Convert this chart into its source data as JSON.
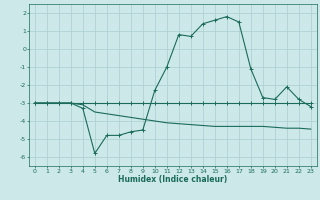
{
  "xlabel": "Humidex (Indice chaleur)",
  "x": [
    0,
    1,
    2,
    3,
    4,
    5,
    6,
    7,
    8,
    9,
    10,
    11,
    12,
    13,
    14,
    15,
    16,
    17,
    18,
    19,
    20,
    21,
    22,
    23
  ],
  "line_main": [
    -3,
    -3,
    -3,
    -3,
    -3.3,
    -5.8,
    -4.8,
    -4.8,
    -4.6,
    -4.5,
    -2.3,
    -1.0,
    0.8,
    0.7,
    1.4,
    1.6,
    1.8,
    1.5,
    -1.1,
    -2.7,
    -2.8,
    -2.1,
    -2.8,
    -3.2
  ],
  "line_upper": [
    -3,
    -3,
    -3,
    -3,
    -3.0,
    -3.0,
    -3.0,
    -3.0,
    -3.0,
    -3.0,
    -3.0,
    -3.0,
    -3.0,
    -3.0,
    -3.0,
    -3.0,
    -3.0,
    -3.0,
    -3.0,
    -3.0,
    -3.0,
    -3.0,
    -3.0,
    -3.0
  ],
  "line_lower": [
    -3,
    -3,
    -3,
    -3,
    -3.1,
    -3.5,
    -3.6,
    -3.7,
    -3.8,
    -3.9,
    -4.0,
    -4.1,
    -4.15,
    -4.2,
    -4.25,
    -4.3,
    -4.3,
    -4.3,
    -4.3,
    -4.3,
    -4.35,
    -4.4,
    -4.4,
    -4.45
  ],
  "ylim": [
    -6.5,
    2.5
  ],
  "yticks": [
    -6,
    -5,
    -4,
    -3,
    -2,
    -1,
    0,
    1,
    2
  ],
  "xticks": [
    0,
    1,
    2,
    3,
    4,
    5,
    6,
    7,
    8,
    9,
    10,
    11,
    12,
    13,
    14,
    15,
    16,
    17,
    18,
    19,
    20,
    21,
    22,
    23
  ],
  "line_color": "#1a6b5a",
  "bg_color": "#cce8e8",
  "grid_color": "#aacece",
  "font_color": "#1a6b5a",
  "figsize": [
    3.2,
    2.0
  ],
  "dpi": 100
}
